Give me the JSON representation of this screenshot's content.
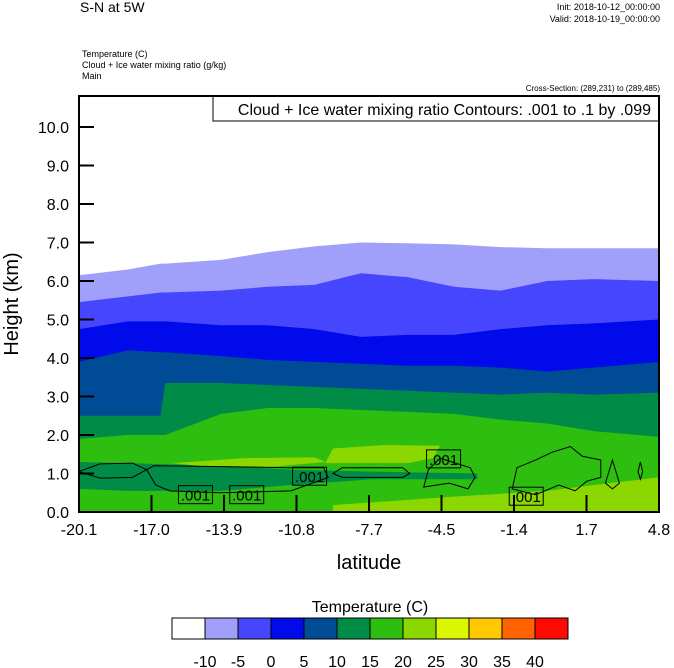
{
  "header": {
    "title": "S-N at 5W",
    "init": "Init: 2018-10-12_00:00:00",
    "valid": "Valid: 2018-10-19_00:00:00",
    "fields": [
      "Temperature   (C)",
      "Cloud + Ice water mixing ratio   (g/kg)",
      "Main"
    ],
    "cross_section": "Cross-Section: (289,231) to (289,485)"
  },
  "chart_data": {
    "type": "heatmap",
    "legend_text": "Cloud + Ice water mixing ratio Contours: .001 to .1 by .099",
    "xlabel": "latitude",
    "ylabel": "Height (km)",
    "xlim": [
      -20.1,
      4.8
    ],
    "ylim": [
      0,
      10.8
    ],
    "xticks": [
      "-20.1",
      "-17.0",
      "-13.9",
      "-10.8",
      "-7.7",
      "-4.5",
      "-1.4",
      "1.7",
      "4.8"
    ],
    "yticks": [
      "0.0",
      "1.0",
      "2.0",
      "3.0",
      "4.0",
      "5.0",
      "6.0",
      "7.0",
      "8.0",
      "9.0",
      "10.0"
    ],
    "isotherm_lats": [
      -20.1,
      -18,
      -16.6,
      -16.4,
      -14,
      -12,
      -10,
      -8,
      -6,
      -4,
      -2,
      0,
      2,
      4.8
    ],
    "isotherms": [
      {
        "level": -10,
        "below_color": "#A0A0FA",
        "heights": [
          6.15,
          6.3,
          6.45,
          6.45,
          6.55,
          6.75,
          6.9,
          7.0,
          6.98,
          6.95,
          6.88,
          6.85,
          6.85,
          6.85
        ]
      },
      {
        "level": -5,
        "below_color": "#4646FF",
        "heights": [
          5.45,
          5.6,
          5.7,
          5.7,
          5.75,
          5.85,
          5.9,
          6.2,
          6.1,
          5.85,
          5.75,
          6.0,
          6.05,
          6.0
        ]
      },
      {
        "level": 0,
        "below_color": "#000AEB",
        "heights": [
          4.75,
          4.95,
          4.95,
          4.95,
          4.85,
          4.85,
          4.75,
          4.55,
          4.6,
          4.6,
          4.75,
          4.85,
          4.9,
          5.0
        ]
      },
      {
        "level": 5,
        "below_color": "#004B96",
        "heights": [
          3.9,
          4.2,
          4.15,
          4.15,
          4.05,
          3.95,
          3.9,
          3.85,
          3.8,
          3.8,
          3.75,
          3.65,
          3.75,
          3.9
        ]
      },
      {
        "level": 10,
        "below_color": "#008C46",
        "heights": [
          2.5,
          2.5,
          2.5,
          3.35,
          3.35,
          3.3,
          3.25,
          3.2,
          3.15,
          3.1,
          3.05,
          3.1,
          3.05,
          3.1
        ]
      },
      {
        "level": 15,
        "below_color": "#2DBE0F",
        "heights": [
          1.9,
          2.0,
          2.0,
          2.0,
          2.55,
          2.7,
          2.7,
          2.65,
          2.6,
          2.55,
          2.4,
          2.3,
          2.1,
          1.95
        ]
      }
    ],
    "patches": [
      {
        "range": "10-15",
        "color": "#008C46",
        "points": [
          [
            -20.1,
            0.6
          ],
          [
            -20.1,
            1.3
          ],
          [
            -18,
            1.27
          ],
          [
            -14,
            1.2
          ],
          [
            -11,
            1.1
          ],
          [
            -7.5,
            1.05
          ],
          [
            -3.0,
            1.0
          ],
          [
            -3.0,
            0.85
          ],
          [
            -7.5,
            0.85
          ],
          [
            -11,
            0.7
          ],
          [
            -14,
            0.55
          ],
          [
            -18,
            0.55
          ]
        ]
      },
      {
        "range": "20-25",
        "color": "#8CD700",
        "points": [
          [
            -16.1,
            1.27
          ],
          [
            -13,
            1.4
          ],
          [
            -10,
            1.42
          ],
          [
            -9.5,
            1.3
          ],
          [
            -12,
            1.17
          ],
          [
            -15,
            1.2
          ]
        ]
      },
      {
        "range": "20-25",
        "color": "#8CD700",
        "points": [
          [
            -9.5,
            1.3
          ],
          [
            -9.2,
            1.65
          ],
          [
            -7,
            1.74
          ],
          [
            -4.6,
            1.72
          ],
          [
            -4.9,
            1.4
          ],
          [
            -6,
            1.27
          ],
          [
            -9.5,
            1.27
          ]
        ]
      },
      {
        "range": "20-25",
        "color": "#8CD700",
        "points": [
          [
            -9.2,
            0
          ],
          [
            -9.2,
            0.18
          ],
          [
            -4,
            0.4
          ],
          [
            0,
            0.55
          ],
          [
            2,
            0.7
          ],
          [
            4.8,
            0.9
          ],
          [
            4.8,
            0
          ]
        ]
      }
    ],
    "contours": [
      {
        "level": 0.001,
        "points": [
          [
            -20.1,
            1.05
          ],
          [
            -19.2,
            1.25
          ],
          [
            -17.8,
            1.27
          ],
          [
            -17.2,
            1.1
          ],
          [
            -17.8,
            0.9
          ],
          [
            -19.2,
            0.88
          ]
        ]
      },
      {
        "level": 0.001,
        "points": [
          [
            -17.2,
            1.1
          ],
          [
            -16.9,
            1.2
          ],
          [
            -14,
            1.18
          ],
          [
            -11,
            1.15
          ],
          [
            -9.6,
            1.15
          ],
          [
            -9.4,
            0.9
          ],
          [
            -11,
            0.55
          ],
          [
            -14,
            0.5
          ],
          [
            -16.2,
            0.55
          ],
          [
            -16.8,
            0.7
          ]
        ]
      },
      {
        "level": 0.001,
        "points": [
          [
            -9.2,
            1.0
          ],
          [
            -8.8,
            1.15
          ],
          [
            -6.2,
            1.15
          ],
          [
            -5.9,
            1.0
          ],
          [
            -6.2,
            0.9
          ],
          [
            -8.8,
            0.9
          ]
        ]
      },
      {
        "level": 0.001,
        "points": [
          [
            -5.3,
            0.65
          ],
          [
            -5.1,
            1.1
          ],
          [
            -4.6,
            1.4
          ],
          [
            -3.3,
            1.15
          ],
          [
            -3.1,
            0.9
          ],
          [
            -3.4,
            0.6
          ],
          [
            -4.2,
            0.75
          ]
        ]
      },
      {
        "level": 0.001,
        "points": [
          [
            -1.5,
            0.6
          ],
          [
            -1.3,
            1.15
          ],
          [
            -0.5,
            1.35
          ],
          [
            0.2,
            1.55
          ],
          [
            1.0,
            1.7
          ],
          [
            1.5,
            1.45
          ],
          [
            2.3,
            1.35
          ],
          [
            2.3,
            0.9
          ],
          [
            1.7,
            0.8
          ],
          [
            1.2,
            0.55
          ],
          [
            0.5,
            0.7
          ],
          [
            -0.5,
            0.45
          ]
        ]
      },
      {
        "level": 0.001,
        "points": [
          [
            2.5,
            0.75
          ],
          [
            2.8,
            1.35
          ],
          [
            3.1,
            0.75
          ],
          [
            2.8,
            0.6
          ]
        ]
      },
      {
        "level": 0.001,
        "points": [
          [
            3.9,
            1.05
          ],
          [
            4.0,
            1.3
          ],
          [
            4.1,
            1.05
          ],
          [
            4.0,
            0.85
          ]
        ]
      }
    ],
    "contour_labels": [
      {
        "text": ".001",
        "lat": -15.1,
        "km": 0.45
      },
      {
        "text": ".001",
        "lat": -12.9,
        "km": 0.45
      },
      {
        "text": ".001",
        "lat": -10.2,
        "km": 0.93
      },
      {
        "text": ".001",
        "lat": -4.45,
        "km": 1.38
      },
      {
        "text": ".001",
        "lat": -0.9,
        "km": 0.41
      }
    ],
    "colorbar": {
      "title": "Temperature  (C)",
      "colors": [
        "#FFFFFF",
        "#A0A0FA",
        "#4646FF",
        "#000AEB",
        "#004B96",
        "#008C46",
        "#2DBE0F",
        "#8CD700",
        "#DCF500",
        "#FFC800",
        "#FF6400",
        "#FF0A00"
      ],
      "labels": [
        "-10",
        "-5",
        "0",
        "5",
        "10",
        "15",
        "20",
        "25",
        "30",
        "35",
        "40"
      ]
    }
  }
}
